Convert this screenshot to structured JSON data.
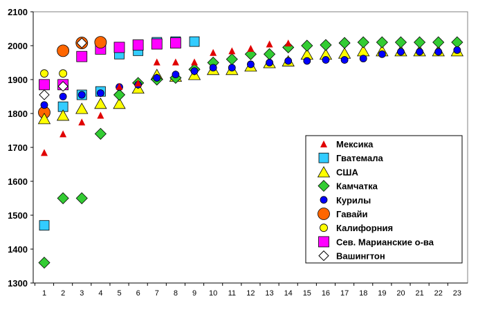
{
  "chart_data": {
    "type": "scatter",
    "title": "",
    "xlabel": "",
    "ylabel": "",
    "xlim": [
      1,
      23
    ],
    "ylim": [
      1300,
      2100
    ],
    "y_ticks": [
      1300,
      1400,
      1500,
      1600,
      1700,
      1800,
      1900,
      2000,
      2100
    ],
    "x_ticks": [
      1,
      2,
      3,
      4,
      5,
      6,
      7,
      8,
      9,
      10,
      11,
      12,
      13,
      14,
      15,
      16,
      17,
      18,
      19,
      20,
      21,
      22,
      23
    ],
    "grid": "horizontal",
    "legend_position": "right",
    "series": [
      {
        "name": "Мексика",
        "marker": "triangle",
        "color": "#e00000",
        "points": [
          [
            1,
            1685
          ],
          [
            2,
            1740
          ],
          [
            3,
            1775
          ],
          [
            4,
            1795
          ],
          [
            5,
            1880
          ],
          [
            6,
            1890
          ],
          [
            7,
            1952
          ],
          [
            8,
            1952
          ],
          [
            9,
            1952
          ],
          [
            10,
            1980
          ],
          [
            11,
            1985
          ],
          [
            12,
            1992
          ],
          [
            13,
            2005
          ],
          [
            14,
            2008
          ]
        ]
      },
      {
        "name": "Гватемала",
        "marker": "square",
        "color": "#33ccff",
        "points": [
          [
            1,
            1470
          ],
          [
            2,
            1820
          ],
          [
            3,
            1855
          ],
          [
            4,
            1865
          ],
          [
            5,
            1975
          ],
          [
            6,
            1985
          ],
          [
            7,
            2010
          ],
          [
            8,
            2012
          ],
          [
            9,
            2012
          ]
        ]
      },
      {
        "name": "США",
        "marker": "triangle-large",
        "color": "#ffff00",
        "points": [
          [
            1,
            1785
          ],
          [
            2,
            1795
          ],
          [
            3,
            1815
          ],
          [
            4,
            1830
          ],
          [
            5,
            1830
          ],
          [
            6,
            1875
          ],
          [
            7,
            1915
          ],
          [
            8,
            1910
          ],
          [
            9,
            1915
          ],
          [
            10,
            1930
          ],
          [
            11,
            1930
          ],
          [
            12,
            1940
          ],
          [
            13,
            1950
          ],
          [
            14,
            1955
          ],
          [
            15,
            1975
          ],
          [
            16,
            1975
          ],
          [
            17,
            1978
          ],
          [
            18,
            1985
          ],
          [
            19,
            1985
          ],
          [
            20,
            1985
          ],
          [
            21,
            1985
          ],
          [
            22,
            1985
          ],
          [
            23,
            1985
          ]
        ]
      },
      {
        "name": "Камчатка",
        "marker": "diamond",
        "color": "#33cc33",
        "points": [
          [
            1,
            1360
          ],
          [
            2,
            1550
          ],
          [
            3,
            1550
          ],
          [
            4,
            1740
          ],
          [
            5,
            1855
          ],
          [
            6,
            1890
          ],
          [
            7,
            1900
          ],
          [
            8,
            1905
          ],
          [
            9,
            1930
          ],
          [
            10,
            1950
          ],
          [
            11,
            1960
          ],
          [
            12,
            1975
          ],
          [
            13,
            1975
          ],
          [
            14,
            1995
          ],
          [
            15,
            2000
          ],
          [
            16,
            2002
          ],
          [
            17,
            2008
          ],
          [
            18,
            2010
          ],
          [
            19,
            2010
          ],
          [
            20,
            2010
          ],
          [
            21,
            2010
          ],
          [
            22,
            2010
          ],
          [
            23,
            2010
          ]
        ]
      },
      {
        "name": "Курилы",
        "marker": "circle-small",
        "color": "#0000ff",
        "points": [
          [
            1,
            1825
          ],
          [
            2,
            1850
          ],
          [
            3,
            1855
          ],
          [
            4,
            1860
          ],
          [
            5,
            1878
          ],
          [
            6,
            1885
          ],
          [
            7,
            1905
          ],
          [
            8,
            1915
          ],
          [
            9,
            1925
          ],
          [
            10,
            1935
          ],
          [
            11,
            1935
          ],
          [
            12,
            1945
          ],
          [
            13,
            1950
          ],
          [
            14,
            1955
          ],
          [
            15,
            1955
          ],
          [
            16,
            1958
          ],
          [
            17,
            1958
          ],
          [
            18,
            1962
          ],
          [
            19,
            1975
          ],
          [
            20,
            1982
          ],
          [
            21,
            1982
          ],
          [
            22,
            1982
          ],
          [
            23,
            1987
          ]
        ]
      },
      {
        "name": "Гавайи",
        "marker": "circle-large",
        "color": "#ff6600",
        "points": [
          [
            1,
            1803
          ],
          [
            2,
            1985
          ],
          [
            3,
            2008
          ],
          [
            4,
            2010
          ]
        ]
      },
      {
        "name": "Калифорния",
        "marker": "circle-medium",
        "color": "#ffff00",
        "points": [
          [
            1,
            1918
          ],
          [
            2,
            1918
          ]
        ]
      },
      {
        "name": "Сев. Марианские о-ва",
        "marker": "square-large",
        "color": "#ff00ff",
        "points": [
          [
            1,
            1885
          ],
          [
            2,
            1885
          ],
          [
            3,
            1968
          ],
          [
            4,
            1990
          ],
          [
            5,
            1995
          ],
          [
            6,
            2002
          ],
          [
            7,
            2005
          ],
          [
            8,
            2008
          ]
        ]
      },
      {
        "name": "Вашингтон",
        "marker": "diamond-open",
        "color": "#ffffff",
        "points": [
          [
            1,
            1855
          ],
          [
            2,
            1880
          ],
          [
            3,
            2008
          ]
        ]
      }
    ]
  }
}
